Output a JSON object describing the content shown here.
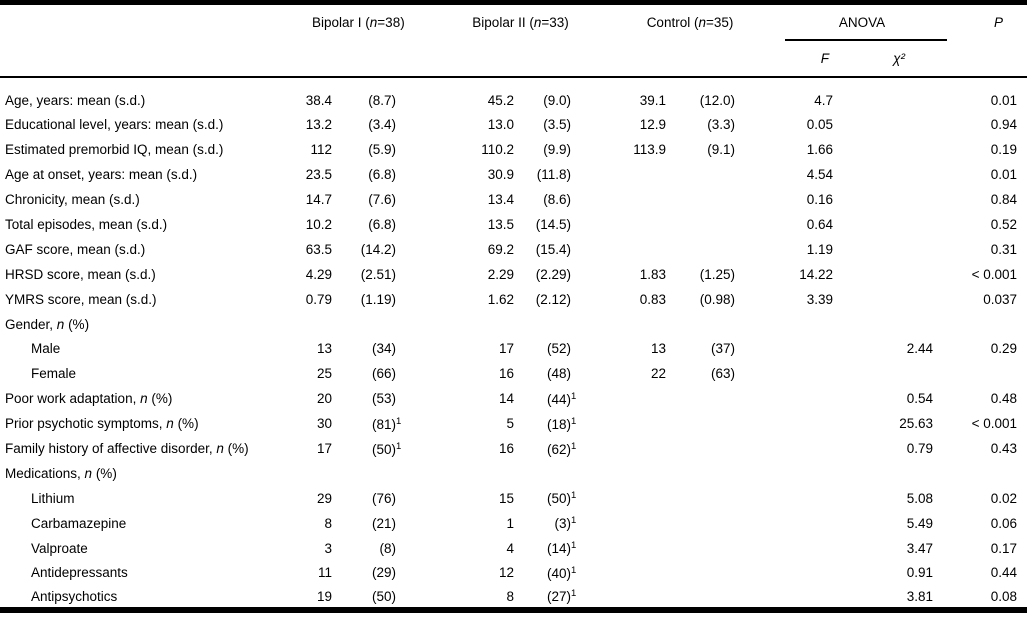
{
  "colors": {
    "text": "#000000",
    "background": "#ffffff",
    "rule": "#000000"
  },
  "table": {
    "header": {
      "group1": "Bipolar I (n=38)",
      "group2": "Bipolar II (n=33)",
      "group3": "Control (n=35)",
      "anova": "ANOVA",
      "f": "F",
      "chi_sq": "χ²",
      "p": "P"
    },
    "rows": [
      {
        "label": "Age, years: mean (s.d.)",
        "indent": false,
        "bp1_n": "38.4",
        "bp1_sd": "(8.7)",
        "bp2_n": "45.2",
        "bp2_sd": "(9.0)",
        "ctrl_n": "39.1",
        "ctrl_sd": "(12.0)",
        "f": "4.7",
        "chi_sq": "",
        "p": "0.01"
      },
      {
        "label": "Educational level, years: mean (s.d.)",
        "indent": false,
        "bp1_n": "13.2",
        "bp1_sd": "(3.4)",
        "bp2_n": "13.0",
        "bp2_sd": "(3.5)",
        "ctrl_n": "12.9",
        "ctrl_sd": "(3.3)",
        "f": "0.05",
        "chi_sq": "",
        "p": "0.94"
      },
      {
        "label": "Estimated premorbid IQ, mean (s.d.)",
        "indent": false,
        "bp1_n": "112",
        "bp1_sd": "(5.9)",
        "bp2_n": "110.2",
        "bp2_sd": "(9.9)",
        "ctrl_n": "113.9",
        "ctrl_sd": "(9.1)",
        "f": "1.66",
        "chi_sq": "",
        "p": "0.19"
      },
      {
        "label": "Age at onset, years: mean (s.d.)",
        "indent": false,
        "bp1_n": "23.5",
        "bp1_sd": "(6.8)",
        "bp2_n": "30.9",
        "bp2_sd": "(11.8)",
        "ctrl_n": "",
        "ctrl_sd": "",
        "f": "4.54",
        "chi_sq": "",
        "p": "0.01"
      },
      {
        "label": "Chronicity, mean (s.d.)",
        "indent": false,
        "bp1_n": "14.7",
        "bp1_sd": "(7.6)",
        "bp2_n": "13.4",
        "bp2_sd": "(8.6)",
        "ctrl_n": "",
        "ctrl_sd": "",
        "f": "0.16",
        "chi_sq": "",
        "p": "0.84"
      },
      {
        "label": "Total episodes, mean (s.d.)",
        "indent": false,
        "bp1_n": "10.2",
        "bp1_sd": "(6.8)",
        "bp2_n": "13.5",
        "bp2_sd": "(14.5)",
        "ctrl_n": "",
        "ctrl_sd": "",
        "f": "0.64",
        "chi_sq": "",
        "p": "0.52"
      },
      {
        "label": "GAF score, mean (s.d.)",
        "indent": false,
        "bp1_n": "63.5",
        "bp1_sd": "(14.2)",
        "bp2_n": "69.2",
        "bp2_sd": "(15.4)",
        "ctrl_n": "",
        "ctrl_sd": "",
        "f": "1.19",
        "chi_sq": "",
        "p": "0.31"
      },
      {
        "label": "HRSD score, mean (s.d.)",
        "indent": false,
        "bp1_n": "4.29",
        "bp1_sd": "(2.51)",
        "bp2_n": "2.29",
        "bp2_sd": "(2.29)",
        "ctrl_n": "1.83",
        "ctrl_sd": "(1.25)",
        "f": "14.22",
        "chi_sq": "",
        "p": "< 0.001"
      },
      {
        "label": "YMRS score, mean (s.d.)",
        "indent": false,
        "bp1_n": "0.79",
        "bp1_sd": "(1.19)",
        "bp2_n": "1.62",
        "bp2_sd": "(2.12)",
        "ctrl_n": "0.83",
        "ctrl_sd": "(0.98)",
        "f": "3.39",
        "chi_sq": "",
        "p": "0.037"
      },
      {
        "label": "Gender, n (%)",
        "indent": false,
        "bp1_n": "",
        "bp1_sd": "",
        "bp2_n": "",
        "bp2_sd": "",
        "ctrl_n": "",
        "ctrl_sd": "",
        "f": "",
        "chi_sq": "",
        "p": ""
      },
      {
        "label": "Male",
        "indent": true,
        "bp1_n": "13",
        "bp1_sd": "(34)",
        "bp2_n": "17",
        "bp2_sd": "(52)",
        "ctrl_n": "13",
        "ctrl_sd": "(37)",
        "f": "",
        "chi_sq": "2.44",
        "p": "0.29"
      },
      {
        "label": "Female",
        "indent": true,
        "bp1_n": "25",
        "bp1_sd": "(66)",
        "bp2_n": "16",
        "bp2_sd": "(48)",
        "ctrl_n": "22",
        "ctrl_sd": "(63)",
        "f": "",
        "chi_sq": "",
        "p": ""
      },
      {
        "label": "Poor work adaptation, n (%)",
        "indent": false,
        "bp1_n": "20",
        "bp1_sd": "(53)",
        "bp2_n": "14",
        "bp2_sd": "(44)¹",
        "ctrl_n": "",
        "ctrl_sd": "",
        "f": "",
        "chi_sq": "0.54",
        "p": "0.48"
      },
      {
        "label": "Prior psychotic symptoms, n (%)",
        "indent": false,
        "bp1_n": "30",
        "bp1_sd": "(81)¹",
        "bp2_n": "5",
        "bp2_sd": "(18)¹",
        "ctrl_n": "",
        "ctrl_sd": "",
        "f": "",
        "chi_sq": "25.63",
        "p": "< 0.001"
      },
      {
        "label": "Family history of affective disorder, n (%)",
        "indent": false,
        "bp1_n": "17",
        "bp1_sd": "(50)¹",
        "bp2_n": "16",
        "bp2_sd": "(62)¹",
        "ctrl_n": "",
        "ctrl_sd": "",
        "f": "",
        "chi_sq": "0.79",
        "p": "0.43"
      },
      {
        "label": "Medications, n (%)",
        "indent": false,
        "bp1_n": "",
        "bp1_sd": "",
        "bp2_n": "",
        "bp2_sd": "",
        "ctrl_n": "",
        "ctrl_sd": "",
        "f": "",
        "chi_sq": "",
        "p": ""
      },
      {
        "label": "Lithium",
        "indent": true,
        "bp1_n": "29",
        "bp1_sd": "(76)",
        "bp2_n": "15",
        "bp2_sd": "(50)¹",
        "ctrl_n": "",
        "ctrl_sd": "",
        "f": "",
        "chi_sq": "5.08",
        "p": "0.02"
      },
      {
        "label": "Carbamazepine",
        "indent": true,
        "bp1_n": "8",
        "bp1_sd": "(21)",
        "bp2_n": "1",
        "bp2_sd": "(3)¹",
        "ctrl_n": "",
        "ctrl_sd": "",
        "f": "",
        "chi_sq": "5.49",
        "p": "0.06"
      },
      {
        "label": "Valproate",
        "indent": true,
        "bp1_n": "3",
        "bp1_sd": "(8)",
        "bp2_n": "4",
        "bp2_sd": "(14)¹",
        "ctrl_n": "",
        "ctrl_sd": "",
        "f": "",
        "chi_sq": "3.47",
        "p": "0.17"
      },
      {
        "label": "Antidepressants",
        "indent": true,
        "bp1_n": "11",
        "bp1_sd": "(29)",
        "bp2_n": "12",
        "bp2_sd": "(40)¹",
        "ctrl_n": "",
        "ctrl_sd": "",
        "f": "",
        "chi_sq": "0.91",
        "p": "0.44"
      },
      {
        "label": "Antipsychotics",
        "indent": true,
        "bp1_n": "19",
        "bp1_sd": "(50)",
        "bp2_n": "8",
        "bp2_sd": "(27)¹",
        "ctrl_n": "",
        "ctrl_sd": "",
        "f": "",
        "chi_sq": "3.81",
        "p": "0.08"
      }
    ]
  }
}
